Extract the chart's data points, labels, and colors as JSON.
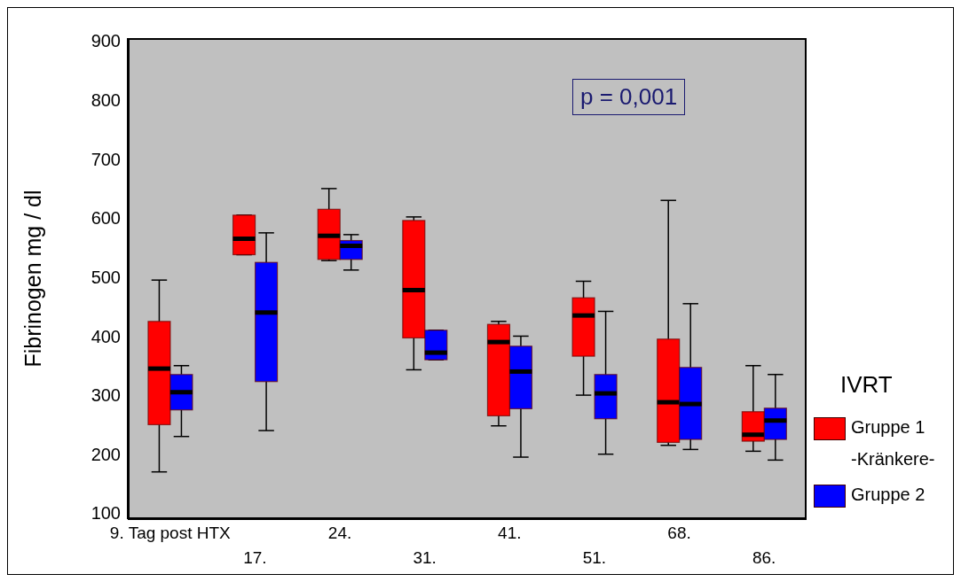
{
  "chart_data": {
    "type": "box",
    "ylabel": "Fibrinogen  mg / dl",
    "legend_title": "IVRT",
    "legend": "right",
    "categories": [
      "9. Tag post HTX",
      "17.",
      "24.",
      "31.",
      "41.",
      "51.",
      "68.",
      "86."
    ],
    "ylim": [
      90,
      905
    ],
    "yticks": [
      100,
      200,
      300,
      400,
      500,
      600,
      700,
      800,
      900
    ],
    "annotations": [
      "p = 0,001"
    ],
    "series": [
      {
        "name": "Gruppe 1\n-Kränkere-",
        "color": "#ff0000",
        "boxes": [
          {
            "low": 170,
            "q1": 250,
            "median": 345,
            "q3": 425,
            "high": 495
          },
          {
            "low": 538,
            "q1": 538,
            "median": 565,
            "q3": 605,
            "high": 605
          },
          {
            "low": 528,
            "q1": 530,
            "median": 570,
            "q3": 615,
            "high": 650
          },
          {
            "low": 343,
            "q1": 397,
            "median": 478,
            "q3": 596,
            "high": 602
          },
          {
            "low": 248,
            "q1": 265,
            "median": 390,
            "q3": 420,
            "high": 425
          },
          {
            "low": 300,
            "q1": 366,
            "median": 435,
            "q3": 465,
            "high": 493
          },
          {
            "low": 215,
            "q1": 220,
            "median": 288,
            "q3": 395,
            "high": 630
          },
          {
            "low": 205,
            "q1": 222,
            "median": 233,
            "q3": 272,
            "high": 350
          }
        ]
      },
      {
        "name": "Gruppe 2",
        "color": "#0000ff",
        "boxes": [
          {
            "low": 230,
            "q1": 275,
            "median": 305,
            "q3": 335,
            "high": 350
          },
          {
            "low": 240,
            "q1": 323,
            "median": 440,
            "q3": 525,
            "high": 575
          },
          {
            "low": 512,
            "q1": 530,
            "median": 553,
            "q3": 562,
            "high": 572
          },
          {
            "low": 360,
            "q1": 360,
            "median": 372,
            "q3": 410,
            "high": 410
          },
          {
            "low": 195,
            "q1": 277,
            "median": 340,
            "q3": 383,
            "high": 400
          },
          {
            "low": 200,
            "q1": 260,
            "median": 303,
            "q3": 335,
            "high": 442
          },
          {
            "low": 208,
            "q1": 225,
            "median": 285,
            "q3": 347,
            "high": 455
          },
          {
            "low": 190,
            "q1": 225,
            "median": 257,
            "q3": 278,
            "high": 335
          }
        ]
      }
    ]
  }
}
